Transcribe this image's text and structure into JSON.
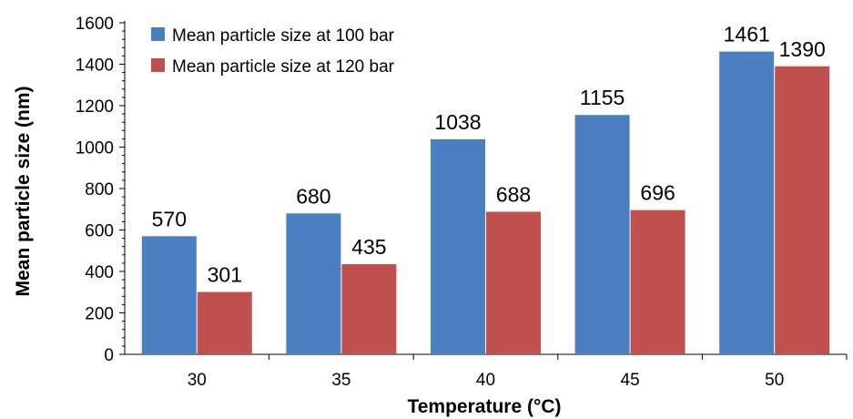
{
  "chart_data": {
    "type": "bar",
    "categories": [
      "30",
      "35",
      "40",
      "45",
      "50"
    ],
    "series": [
      {
        "name": "Mean particle size at 100 bar",
        "values": [
          570,
          680,
          1038,
          1155,
          1461
        ],
        "color": "#4a7fc1"
      },
      {
        "name": "Mean particle size at 120 bar",
        "values": [
          301,
          435,
          688,
          696,
          1390
        ],
        "color": "#c0504d"
      }
    ],
    "title": "",
    "xlabel": "Temperature (°C)",
    "ylabel": "Mean particle size (nm)",
    "ylim": [
      0,
      1600
    ],
    "yticks": [
      0,
      200,
      400,
      600,
      800,
      1000,
      1200,
      1400,
      1600
    ],
    "grid": false,
    "legend_position": "top-left"
  }
}
